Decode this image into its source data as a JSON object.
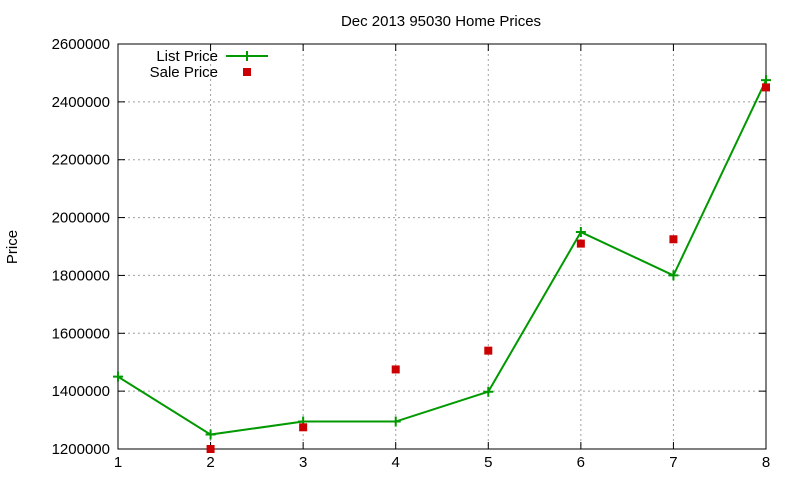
{
  "chart_data": {
    "type": "line",
    "title": "Dec 2013 95030 Home Prices",
    "xlabel": "",
    "ylabel": "Price",
    "xlim": [
      1,
      8
    ],
    "ylim": [
      1200000,
      2600000
    ],
    "xticks": [
      1,
      2,
      3,
      4,
      5,
      6,
      7,
      8
    ],
    "yticks": [
      1200000,
      1400000,
      1600000,
      1800000,
      2000000,
      2200000,
      2400000,
      2600000
    ],
    "grid": true,
    "legend_position": "top-left",
    "series": [
      {
        "name": "List Price",
        "kind": "line",
        "marker": "plus",
        "color": "#009900",
        "x": [
          1,
          2,
          3,
          4,
          5,
          6,
          7,
          8
        ],
        "y": [
          1450000,
          1250000,
          1295000,
          1295000,
          1398000,
          1950000,
          1800000,
          2475000
        ]
      },
      {
        "name": "Sale Price",
        "kind": "scatter",
        "marker": "square",
        "color": "#cc0000",
        "x": [
          2,
          3,
          4,
          5,
          6,
          7,
          8
        ],
        "y": [
          1200000,
          1275000,
          1475000,
          1540000,
          1910000,
          1925000,
          2450000
        ]
      }
    ]
  }
}
